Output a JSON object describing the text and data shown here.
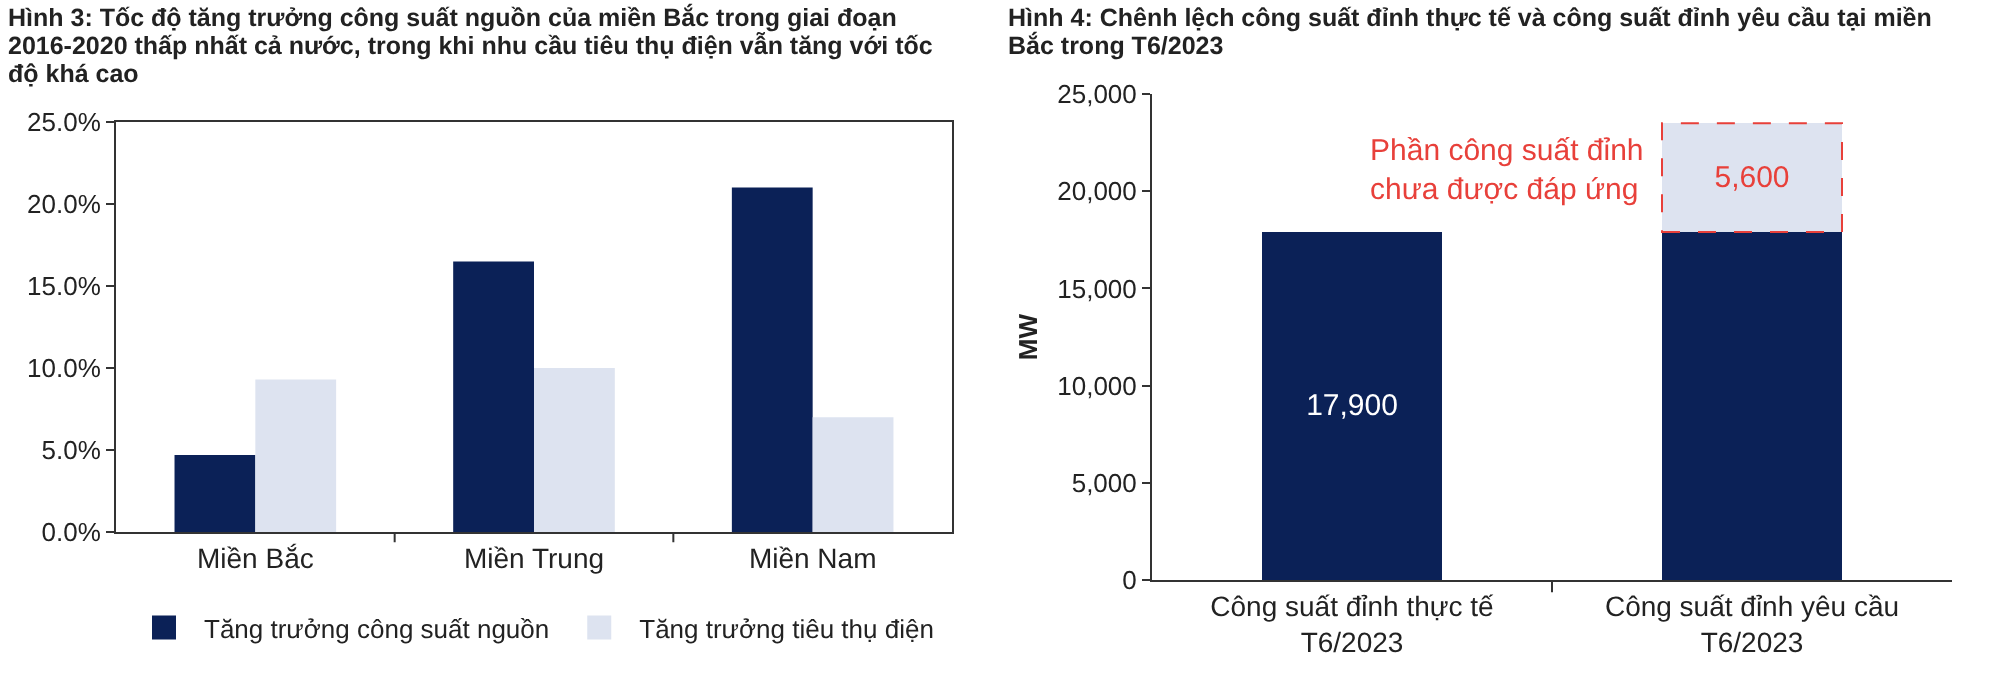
{
  "chart_data": [
    {
      "type": "bar",
      "title": "Hình 3: Tốc độ tăng trưởng công suất nguồn của miền Bắc trong giai đoạn 2016-2020 thấp nhất cả nước, trong khi nhu cầu tiêu thụ điện vẫn tăng với tốc độ khá cao",
      "categories": [
        "Miền Bắc",
        "Miền Trung",
        "Miền Nam"
      ],
      "series": [
        {
          "name": "Tăng trưởng công suất nguồn",
          "color": "#0b2157",
          "values": [
            4.7,
            16.5,
            21.0
          ]
        },
        {
          "name": "Tăng trưởng tiêu thụ điện",
          "color": "#dde3f0",
          "values": [
            9.3,
            10.0,
            7.0
          ]
        }
      ],
      "ylim": [
        0,
        25
      ],
      "yticks": [
        {
          "value": 0,
          "label": "0.0%"
        },
        {
          "value": 5,
          "label": "5.0%"
        },
        {
          "value": 10,
          "label": "10.0%"
        },
        {
          "value": 15,
          "label": "15.0%"
        },
        {
          "value": 20,
          "label": "20.0%"
        },
        {
          "value": 25,
          "label": "25.0%"
        }
      ],
      "grid": false,
      "legend": "bottom"
    },
    {
      "type": "bar",
      "title": "Hình 4: Chênh lệch công suất đỉnh thực tế và công suất đỉnh yêu cầu tại miền Bắc trong T6/2023",
      "categories": [
        "Công suất đỉnh thực tế\nT6/2023",
        "Công suất đỉnh yêu cầu\nT6/2023"
      ],
      "stacked": true,
      "series": [
        {
          "color": "#0b2157",
          "values": [
            17900,
            17900
          ],
          "value_labels": [
            "17,900",
            null
          ]
        },
        {
          "color": "#dde3f0",
          "values": [
            null,
            5600
          ],
          "value_labels": [
            null,
            "5,600"
          ]
        }
      ],
      "ylabel": "MW",
      "ylim": [
        0,
        25000
      ],
      "yticks": [
        {
          "value": 0,
          "label": "0"
        },
        {
          "value": 5000,
          "label": "5,000"
        },
        {
          "value": 10000,
          "label": "10,000"
        },
        {
          "value": 15000,
          "label": "15,000"
        },
        {
          "value": 20000,
          "label": "20,000"
        },
        {
          "value": 25000,
          "label": "25,000"
        }
      ],
      "annotations": [
        "Phần công suất đỉnh\nchưa được đáp ứng"
      ],
      "grid": false,
      "legend": false
    }
  ]
}
